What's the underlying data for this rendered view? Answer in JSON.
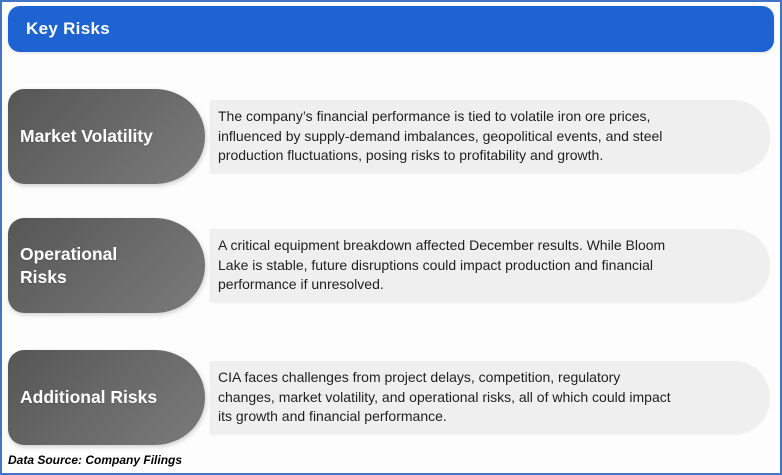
{
  "header": {
    "title": "Key Risks"
  },
  "risks": [
    {
      "title": "Market Volatility",
      "description": "The company’s financial performance is tied to volatile iron ore prices,\ninfluenced by supply-demand imbalances, geopolitical events, and steel\nproduction fluctuations, posing risks to profitability and growth."
    },
    {
      "title": "Operational\nRisks",
      "description": "A critical equipment breakdown affected December results. While Bloom\nLake is stable, future disruptions could impact production and financial\nperformance if unresolved."
    },
    {
      "title": "Additional Risks",
      "description": "CIA faces challenges from project delays, competition, regulatory\nchanges, market volatility, and operational risks, all of which could impact\nits growth and financial performance."
    }
  ],
  "footer": {
    "text": "Data Source: Company Filings"
  },
  "colors": {
    "frame_border": "#4472C4",
    "header_bg": "#1E63D2",
    "header_text": "#FFFFFF",
    "pill_gradient_start": "#565656",
    "pill_gradient_end": "#7B7B7B",
    "pill_text": "#FFFFFF",
    "panel_bg": "#EFEFEF",
    "body_text": "#1F1F1F",
    "footer_text": "#000000"
  }
}
